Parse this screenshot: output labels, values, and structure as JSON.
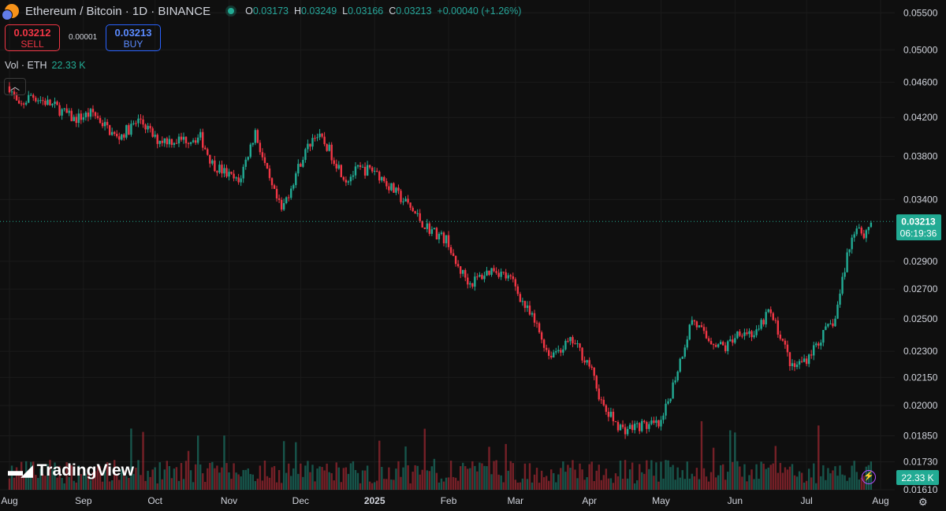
{
  "header": {
    "title": "Ethereum / Bitcoin · 1D · BINANCE",
    "ohlc": {
      "o_label": "O",
      "o": "0.03173",
      "h_label": "H",
      "h": "0.03249",
      "l_label": "L",
      "l": "0.03166",
      "c_label": "C",
      "c": "0.03213",
      "change": "+0.00040 (+1.26%)"
    }
  },
  "trade": {
    "sell_price": "0.03212",
    "sell_label": "SELL",
    "spread": "0.00001",
    "buy_price": "0.03213",
    "buy_label": "BUY"
  },
  "volume": {
    "label": "Vol · ETH",
    "value": "22.33 K"
  },
  "brand": {
    "name": "TradingView"
  },
  "colors": {
    "up": "#22ab94",
    "down": "#f23645",
    "background": "#0f0f0f",
    "text": "#d1d4dc"
  },
  "icons": [
    "tradingview-logo-icon",
    "collapse-chevron-icon",
    "lightning-icon",
    "gear-icon"
  ],
  "chart_data": {
    "type": "candlestick",
    "symbol": "ETHBTC",
    "interval": "1D",
    "yscale": "log",
    "y_ticks": [
      "0.05500",
      "0.05000",
      "0.04600",
      "0.04200",
      "0.03800",
      "0.03400",
      "0.02900",
      "0.02700",
      "0.02500",
      "0.02300",
      "0.02150",
      "0.02000",
      "0.01850",
      "0.01730",
      "0.01610"
    ],
    "x_ticks": [
      "Aug",
      "Sep",
      "Oct",
      "Nov",
      "Dec",
      "2025",
      "Feb",
      "Mar",
      "Apr",
      "May",
      "Jun",
      "Jul",
      "Aug"
    ],
    "x_tick_dates": [
      "2024-08-01",
      "2024-09-01",
      "2024-10-01",
      "2024-11-01",
      "2024-12-01",
      "2025-01-01",
      "2025-02-01",
      "2025-03-01",
      "2025-04-01",
      "2025-05-01",
      "2025-06-01",
      "2025-07-01",
      "2025-08-01"
    ],
    "ylim": [
      0.0161,
      0.0565
    ],
    "last_price": "0.03213",
    "countdown": "06:19:36",
    "volume_label": "22.33 K",
    "close_path": [
      {
        "date": "2024-08-01",
        "value": 0.0455
      },
      {
        "date": "2024-08-05",
        "value": 0.043
      },
      {
        "date": "2024-08-10",
        "value": 0.0445
      },
      {
        "date": "2024-08-20",
        "value": 0.0432
      },
      {
        "date": "2024-08-28",
        "value": 0.0418
      },
      {
        "date": "2024-09-05",
        "value": 0.0425
      },
      {
        "date": "2024-09-15",
        "value": 0.0398
      },
      {
        "date": "2024-09-25",
        "value": 0.0418
      },
      {
        "date": "2024-10-01",
        "value": 0.0397
      },
      {
        "date": "2024-10-10",
        "value": 0.0396
      },
      {
        "date": "2024-10-20",
        "value": 0.0399
      },
      {
        "date": "2024-10-25",
        "value": 0.0373
      },
      {
        "date": "2024-11-05",
        "value": 0.0355
      },
      {
        "date": "2024-11-12",
        "value": 0.0405
      },
      {
        "date": "2024-11-18",
        "value": 0.0355
      },
      {
        "date": "2024-11-23",
        "value": 0.033
      },
      {
        "date": "2024-12-01",
        "value": 0.0375
      },
      {
        "date": "2024-12-07",
        "value": 0.0403
      },
      {
        "date": "2024-12-12",
        "value": 0.039
      },
      {
        "date": "2024-12-20",
        "value": 0.0358
      },
      {
        "date": "2024-12-25",
        "value": 0.0367
      },
      {
        "date": "2025-01-01",
        "value": 0.0367
      },
      {
        "date": "2025-01-08",
        "value": 0.035
      },
      {
        "date": "2025-01-15",
        "value": 0.0335
      },
      {
        "date": "2025-01-22",
        "value": 0.0318
      },
      {
        "date": "2025-02-01",
        "value": 0.0305
      },
      {
        "date": "2025-02-03",
        "value": 0.029
      },
      {
        "date": "2025-02-10",
        "value": 0.0274
      },
      {
        "date": "2025-02-20",
        "value": 0.0285
      },
      {
        "date": "2025-02-28",
        "value": 0.0275
      },
      {
        "date": "2025-03-05",
        "value": 0.0258
      },
      {
        "date": "2025-03-10",
        "value": 0.0245
      },
      {
        "date": "2025-03-15",
        "value": 0.0228
      },
      {
        "date": "2025-03-25",
        "value": 0.0236
      },
      {
        "date": "2025-04-01",
        "value": 0.0222
      },
      {
        "date": "2025-04-07",
        "value": 0.0198
      },
      {
        "date": "2025-04-15",
        "value": 0.0188
      },
      {
        "date": "2025-04-22",
        "value": 0.019
      },
      {
        "date": "2025-05-01",
        "value": 0.019
      },
      {
        "date": "2025-05-08",
        "value": 0.022
      },
      {
        "date": "2025-05-14",
        "value": 0.025
      },
      {
        "date": "2025-05-20",
        "value": 0.0238
      },
      {
        "date": "2025-05-28",
        "value": 0.0232
      },
      {
        "date": "2025-06-03",
        "value": 0.0243
      },
      {
        "date": "2025-06-10",
        "value": 0.024
      },
      {
        "date": "2025-06-15",
        "value": 0.0255
      },
      {
        "date": "2025-06-20",
        "value": 0.024
      },
      {
        "date": "2025-06-25",
        "value": 0.022
      },
      {
        "date": "2025-07-01",
        "value": 0.0226
      },
      {
        "date": "2025-07-08",
        "value": 0.024
      },
      {
        "date": "2025-07-13",
        "value": 0.025
      },
      {
        "date": "2025-07-18",
        "value": 0.0295
      },
      {
        "date": "2025-07-22",
        "value": 0.032
      },
      {
        "date": "2025-07-25",
        "value": 0.031
      },
      {
        "date": "2025-07-28",
        "value": 0.03213
      }
    ]
  }
}
